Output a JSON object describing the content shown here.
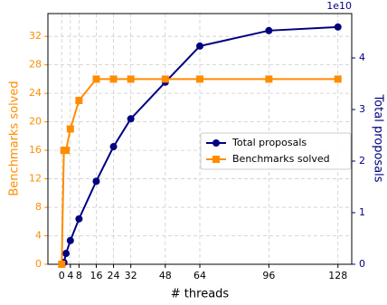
{
  "chart_data": {
    "type": "line",
    "x_label": "# threads",
    "y_label": "Benchmarks solved",
    "y2_label": "Total proposals",
    "y2_offset_label": "1e10",
    "x": [
      0,
      1,
      2,
      4,
      8,
      16,
      24,
      32,
      48,
      64,
      96,
      128
    ],
    "series": [
      {
        "name": "Total proposals",
        "color": "#000080",
        "marker": "circle",
        "axis": "y2",
        "values": [
          0,
          0.035,
          0.21,
          0.46,
          0.88,
          1.61,
          2.28,
          2.82,
          3.53,
          4.23,
          4.53,
          4.6
        ]
      },
      {
        "name": "Benchmarks solved",
        "color": "#ff8c00",
        "marker": "square",
        "values": [
          0,
          16,
          16,
          19,
          23,
          26,
          26,
          26,
          26,
          26,
          26,
          26
        ]
      }
    ],
    "xlim": [
      -6.4,
      134.4
    ],
    "xticks": [
      0,
      4,
      8,
      16,
      24,
      32,
      48,
      64,
      96,
      128
    ],
    "ylim": [
      0,
      35.2
    ],
    "yticks": [
      0,
      4,
      8,
      12,
      16,
      20,
      24,
      28,
      32
    ],
    "y2lim": [
      0,
      4.86
    ],
    "y2ticks": [
      0,
      1,
      2,
      3,
      4
    ],
    "grid": true,
    "legend": "center right"
  }
}
